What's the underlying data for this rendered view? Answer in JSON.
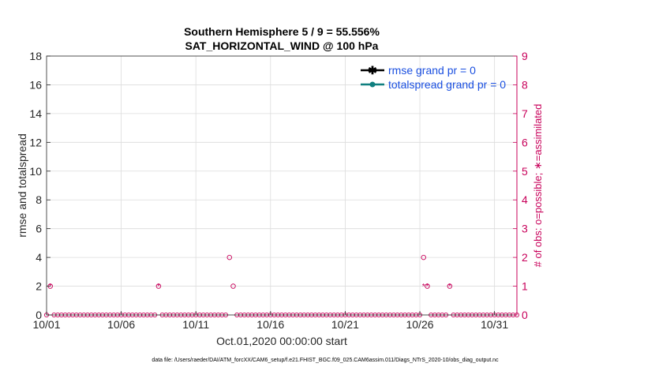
{
  "chart_data": {
    "type": "scatter",
    "title": "Southern Hemisphere 5 / 9 = 55.556%",
    "subtitle": "SAT_HORIZONTAL_WIND @ 100 hPa",
    "ylabel_left": "rmse and totalspread",
    "ylabel_right": "# of obs: o=possible; ∗=assimilated",
    "xlabel": "Oct.01,2020 00:00:00 start",
    "footer": "data file: /Users/raeder/DAI/ATM_forcXX/CAM6_setup/f.e21.FHIST_BGC.f09_025.CAM6assim.011/Diags_NTrS_2020-10/obs_diag_output.nc",
    "ylim_left": [
      0,
      18
    ],
    "ylim_right": [
      0,
      9
    ],
    "xlim": [
      0,
      31.5
    ],
    "yticks_left": [
      "0",
      "2",
      "4",
      "6",
      "8",
      "10",
      "12",
      "14",
      "16",
      "18"
    ],
    "yticks_right": [
      "0",
      "1",
      "2",
      "3",
      "4",
      "5",
      "6",
      "7",
      "8",
      "9"
    ],
    "xticks": [
      {
        "x": 0,
        "label": "10/01"
      },
      {
        "x": 5,
        "label": "10/06"
      },
      {
        "x": 10,
        "label": "10/11"
      },
      {
        "x": 15,
        "label": "10/16"
      },
      {
        "x": 20,
        "label": "10/21"
      },
      {
        "x": 25,
        "label": "10/26"
      },
      {
        "x": 30,
        "label": "10/31"
      }
    ],
    "grid": true,
    "legend_position": "top-right",
    "legend": [
      {
        "label": "rmse grand pr = 0",
        "color": "#000000",
        "marker": "star"
      },
      {
        "label": "totalspread grand pr = 0",
        "color": "#0f7f7f",
        "marker": "circle"
      }
    ],
    "series": [
      {
        "name": "possible",
        "marker": "circle",
        "color": "#c8005a",
        "x": [
          0.25,
          7.5,
          12.25,
          12.5,
          25.25,
          25.5,
          27.0
        ],
        "y": [
          1,
          1,
          2,
          1,
          2,
          1,
          1
        ]
      },
      {
        "name": "assimilated",
        "marker": "star",
        "color": "#c8005a",
        "x": [
          0.25,
          7.5,
          25.25,
          25.5,
          27.0
        ],
        "y": [
          1,
          1,
          1,
          1,
          1
        ]
      }
    ],
    "zero_baseline_step": 0.25
  }
}
